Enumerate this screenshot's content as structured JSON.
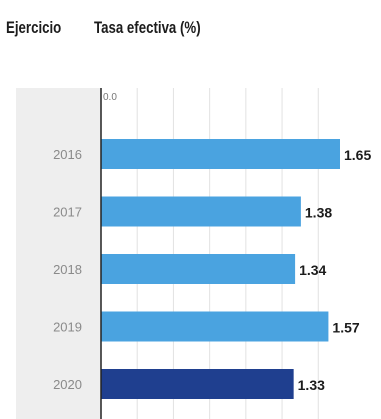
{
  "header": {
    "col1": "Ejercicio",
    "col2": "Tasa efectiva (%)"
  },
  "chart_data": {
    "type": "bar",
    "orientation": "horizontal",
    "title": "",
    "xlabel": "Tasa efectiva (%)",
    "ylabel": "Ejercicio",
    "axis_origin_label": "0.0",
    "categories": [
      "2016",
      "2017",
      "2018",
      "2019",
      "2020"
    ],
    "values": [
      1.65,
      1.38,
      1.34,
      1.57,
      1.33
    ],
    "value_labels": [
      "1.65",
      "1.38",
      "1.34",
      "1.57",
      "1.33"
    ],
    "xlim": [
      0,
      1.65
    ],
    "grid": true,
    "colors": {
      "bar": "#4aa3e0",
      "bar_highlight": "#1f3f8f",
      "category_band": "#eeeeee",
      "axis": "#222222",
      "grid": "#e2e2e2"
    },
    "highlight_category": "2020"
  }
}
